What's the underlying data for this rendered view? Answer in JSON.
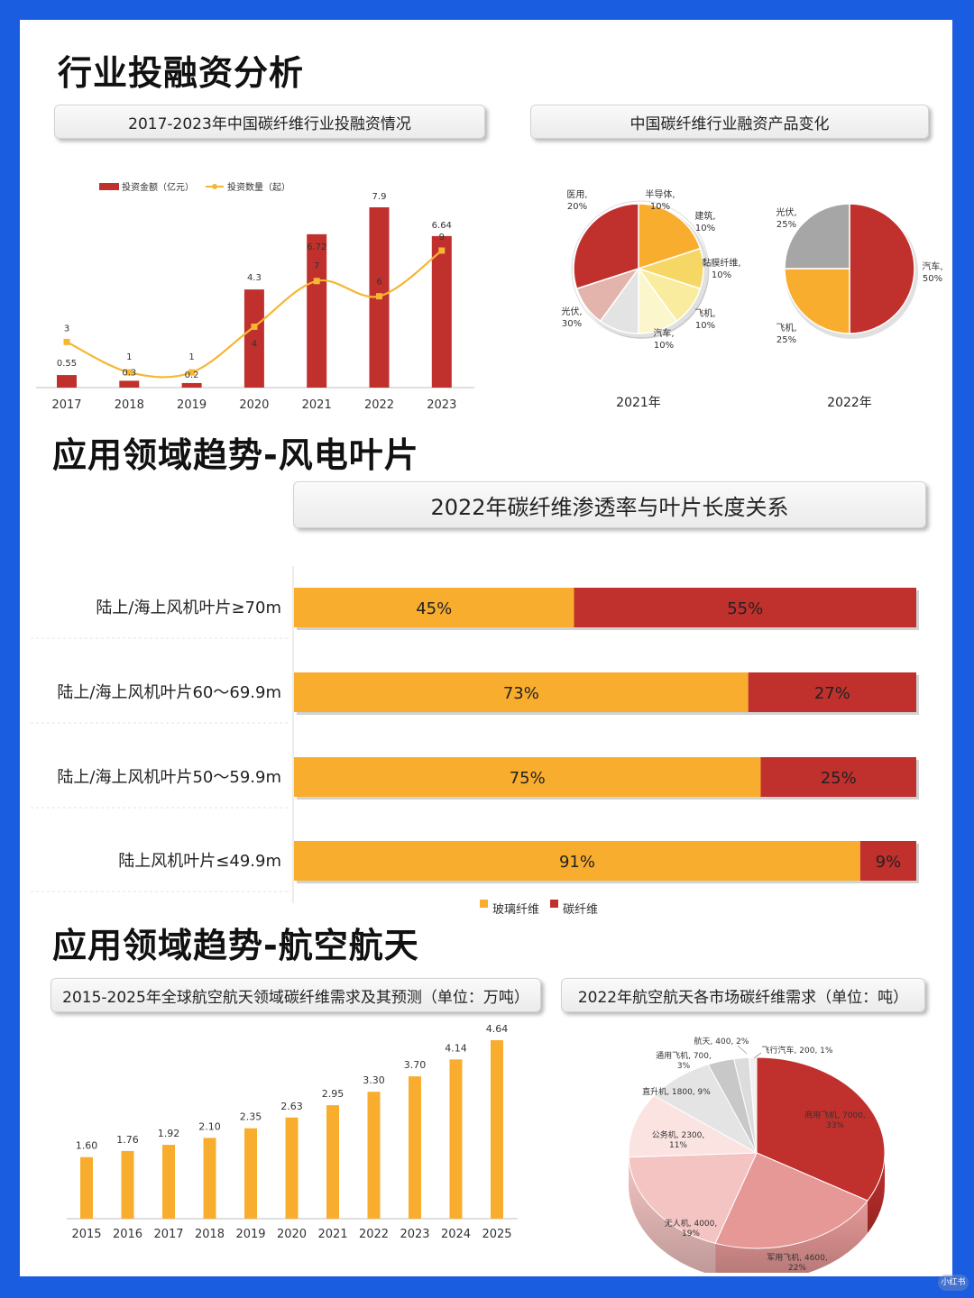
{
  "sections": {
    "invest_title": "行业投融资分析",
    "wind_title": "应用领域趋势-风电叶片",
    "aero_title": "应用领域趋势-航空航天"
  },
  "chart_data": [
    {
      "id": "investment",
      "type": "bar+line",
      "title": "2017-2023年中国碳纤维行业投融资情况",
      "categories": [
        "2017",
        "2018",
        "2019",
        "2020",
        "2021",
        "2022",
        "2023"
      ],
      "series": [
        {
          "name": "投资金额（亿元）",
          "type": "bar",
          "color": "#c0302d",
          "values": [
            0.55,
            0.3,
            0.2,
            4.3,
            6.72,
            7.9,
            6.64
          ]
        },
        {
          "name": "投资数量（起）",
          "type": "line",
          "color": "#f5b632",
          "values": [
            3,
            1,
            1,
            4,
            7,
            6,
            9
          ]
        }
      ],
      "legend": "top-left"
    },
    {
      "id": "product2021",
      "type": "pie",
      "title": "中国碳纤维行业融资产品变化",
      "label": "2021年",
      "slices": [
        {
          "name": "医用",
          "value": 20,
          "color": "#f9ad2e"
        },
        {
          "name": "半导体",
          "value": 10,
          "color": "#f6d766"
        },
        {
          "name": "建筑",
          "value": 10,
          "color": "#f9ec9e"
        },
        {
          "name": "黏膜纤维",
          "value": 10,
          "color": "#fbf6cc"
        },
        {
          "name": "飞机",
          "value": 10,
          "color": "#e3e3e3"
        },
        {
          "name": "汽车",
          "value": 10,
          "color": "#e2b4ac"
        },
        {
          "name": "光伏",
          "value": 30,
          "color": "#c0302d"
        }
      ]
    },
    {
      "id": "product2022",
      "type": "pie",
      "label": "2022年",
      "slices": [
        {
          "name": "汽车",
          "value": 50,
          "color": "#c0302d"
        },
        {
          "name": "飞机",
          "value": 25,
          "color": "#f9ad2e"
        },
        {
          "name": "光伏",
          "value": 25,
          "color": "#a6a6a6"
        }
      ]
    },
    {
      "id": "wind",
      "type": "bar",
      "stacked": true,
      "orientation": "horizontal",
      "title": "2022年碳纤维渗透率与叶片长度关系",
      "categories": [
        "陆上/海上风机叶片≥70m",
        "陆上/海上风机叶片60～69.9m",
        "陆上/海上风机叶片50～59.9m",
        "陆上风机叶片≤49.9m"
      ],
      "series": [
        {
          "name": "玻璃纤维",
          "color": "#f9ad2e",
          "values": [
            45,
            73,
            75,
            91
          ]
        },
        {
          "name": "碳纤维",
          "color": "#c0302d",
          "values": [
            55,
            27,
            25,
            9
          ]
        }
      ],
      "unit": "%",
      "legend": "bottom"
    },
    {
      "id": "aero",
      "type": "bar",
      "title": "2015-2025年全球航空航天领域碳纤维需求及其预测（单位：万吨）",
      "categories": [
        "2015",
        "2016",
        "2017",
        "2018",
        "2019",
        "2020",
        "2021",
        "2022",
        "2023",
        "2024",
        "2025"
      ],
      "values": [
        1.6,
        1.76,
        1.92,
        2.1,
        2.35,
        2.63,
        2.95,
        3.3,
        3.7,
        4.14,
        4.64
      ],
      "value_labels": [
        "1.60",
        "1.76",
        "1.92",
        "2.10",
        "2.35",
        "2.63",
        "2.95",
        "3.30",
        "3.70",
        "4.14",
        "4.64"
      ],
      "color": "#f9ad2e"
    },
    {
      "id": "aero_market",
      "type": "pie",
      "title": "2022年航空航天各市场碳纤维需求（单位：吨）",
      "slices": [
        {
          "name": "商用飞机",
          "value": 7000,
          "pct": "33%",
          "label_l1": "商用飞机, 7000,",
          "label_l2": "33%",
          "color": "#c0302d"
        },
        {
          "name": "军用飞机",
          "value": 4600,
          "pct": "22%",
          "label_l1": "军用飞机, 4600,",
          "label_l2": "22%",
          "color": "#e59896"
        },
        {
          "name": "无人机",
          "value": 4000,
          "pct": "19%",
          "label_l1": "无人机, 4000,",
          "label_l2": "19%",
          "color": "#f3c4c2"
        },
        {
          "name": "公务机",
          "value": 2300,
          "pct": "11%",
          "label_l1": "公务机, 2300,",
          "label_l2": "11%",
          "color": "#fbe3e2"
        },
        {
          "name": "直升机",
          "value": 1800,
          "pct": "9%",
          "label_l1": "直升机, 1800, 9%",
          "label_l2": "",
          "color": "#e4e4e4"
        },
        {
          "name": "通用飞机",
          "value": 700,
          "pct": "3%",
          "label_l1": "通用飞机, 700,",
          "label_l2": "3%",
          "color": "#c8c8c8"
        },
        {
          "name": "航天",
          "value": 400,
          "pct": "2%",
          "label_l1": "航天, 400, 2%",
          "label_l2": "",
          "color": "#dcdcdc"
        },
        {
          "name": "飞行汽车",
          "value": 200,
          "pct": "1%",
          "label_l1": "飞行汽车, 200, 1%",
          "label_l2": "",
          "color": "#f2f2f2"
        }
      ]
    }
  ],
  "watermark": "小红书"
}
